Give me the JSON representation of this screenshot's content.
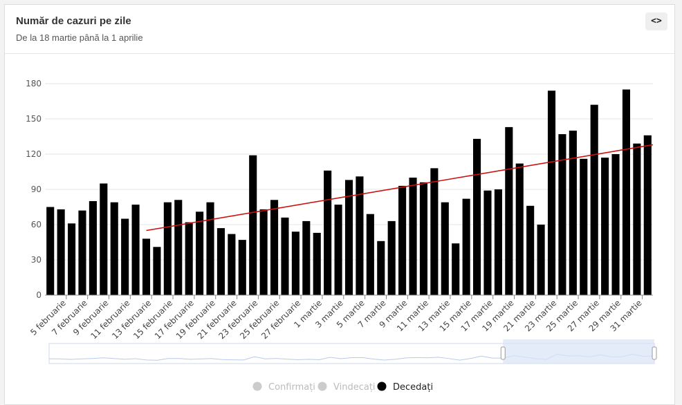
{
  "header": {
    "title": "Număr de cazuri pe zile",
    "subtitle": "De la 18 martie până la 1 aprilie",
    "code_button_icon": "code-icon",
    "code_button_label": "<>"
  },
  "colors": {
    "bar": "#000000",
    "trend": "#cc1111",
    "grid": "#e6e6e6",
    "navigator_fill": "#d8e4f8",
    "navigator_line": "#b8c9ea",
    "legend_inactive": "#cccccc",
    "legend_active": "#000000"
  },
  "chart_data": {
    "type": "bar",
    "ylim": [
      0,
      180
    ],
    "yticks": [
      0,
      30,
      60,
      90,
      120,
      150,
      180
    ],
    "grid": true,
    "categories": [
      "4 februarie",
      "5 februarie",
      "6 februarie",
      "7 februarie",
      "8 februarie",
      "9 februarie",
      "10 februarie",
      "11 februarie",
      "12 februarie",
      "13 februarie",
      "14 februarie",
      "15 februarie",
      "16 februarie",
      "17 februarie",
      "18 februarie",
      "19 februarie",
      "20 februarie",
      "21 februarie",
      "22 februarie",
      "23 februarie",
      "24 februarie",
      "25 februarie",
      "26 februarie",
      "27 februarie",
      "28 februarie",
      "1 martie",
      "2 martie",
      "3 martie",
      "4 martie",
      "5 martie",
      "6 martie",
      "7 martie",
      "8 martie",
      "9 martie",
      "10 martie",
      "11 martie",
      "12 martie",
      "13 martie",
      "14 martie",
      "15 martie",
      "16 martie",
      "17 martie",
      "18 martie",
      "19 martie",
      "20 martie",
      "21 martie",
      "22 martie",
      "23 martie",
      "24 martie",
      "25 martie",
      "26 martie",
      "27 martie",
      "28 martie",
      "29 martie",
      "30 martie",
      "31 martie",
      "1 aprilie"
    ],
    "tick_labels": [
      "5 februarie",
      "7 februarie",
      "9 februarie",
      "11 februarie",
      "13 februarie",
      "15 februarie",
      "17 februarie",
      "19 februarie",
      "21 februarie",
      "23 februarie",
      "25 februarie",
      "27 februarie",
      "1 martie",
      "3 martie",
      "5 martie",
      "7 martie",
      "9 martie",
      "11 martie",
      "13 martie",
      "15 martie",
      "17 martie",
      "19 martie",
      "21 martie",
      "23 martie",
      "25 martie",
      "27 martie",
      "29 martie",
      "31 martie"
    ],
    "series": [
      {
        "name": "Decedați",
        "values": [
          75,
          73,
          61,
          72,
          80,
          95,
          79,
          65,
          77,
          48,
          41,
          79,
          81,
          62,
          71,
          79,
          57,
          52,
          47,
          119,
          73,
          81,
          66,
          54,
          63,
          53,
          106,
          77,
          98,
          101,
          69,
          46,
          63,
          93,
          100,
          96,
          108,
          79,
          44,
          82,
          133,
          89,
          90,
          143,
          112,
          76,
          60,
          174,
          137,
          140,
          116,
          162,
          117,
          120,
          175,
          129,
          136
        ]
      }
    ],
    "trendline": {
      "from": {
        "x": "13 februarie",
        "y": 55
      },
      "to": {
        "x": "1 aprilie",
        "y": 128
      }
    },
    "legend": {
      "placement": "bottom-center",
      "items": [
        {
          "label": "Confirmați",
          "active": false
        },
        {
          "label": "Vindecați",
          "active": false
        },
        {
          "label": "Decedați",
          "active": true
        }
      ]
    }
  }
}
